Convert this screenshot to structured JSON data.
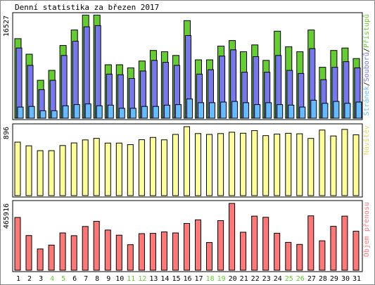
{
  "title": "Denní statistika za březen 2017",
  "colors": {
    "hits": "#66cc33",
    "files": "#7777ee",
    "pages": "#66bbff",
    "visits": "#ffff99",
    "kbytes": "#ff7777",
    "label_hits": "#66cc33",
    "label_files": "#7777ee",
    "label_pages": "#66bbff",
    "label_visits": "#dddd66",
    "label_kbytes": "#ff7777",
    "weekend_day": "#66cc33"
  },
  "chart_data": [
    {
      "type": "bar",
      "categories": [
        "1",
        "2",
        "3",
        "4",
        "5",
        "6",
        "7",
        "8",
        "9",
        "10",
        "11",
        "12",
        "13",
        "14",
        "15",
        "16",
        "17",
        "18",
        "19",
        "20",
        "21",
        "22",
        "23",
        "24",
        "25",
        "26",
        "27",
        "28",
        "29",
        "30",
        "31"
      ],
      "weekend_days": [
        "4",
        "5",
        "11",
        "12",
        "18",
        "19",
        "25",
        "26"
      ],
      "ylabel_max": "16527",
      "ylim": [
        0,
        16527
      ],
      "series": [
        {
          "name": "Přístupů",
          "values": [
            12800,
            10300,
            6100,
            7700,
            11700,
            14200,
            16600,
            16600,
            8600,
            8600,
            8100,
            9200,
            10900,
            10700,
            10100,
            15700,
            9400,
            9400,
            11600,
            12500,
            10700,
            11800,
            9300,
            14000,
            11500,
            10700,
            14200,
            8200,
            10900,
            11300,
            9600
          ]
        },
        {
          "name": "Souborů",
          "values": [
            11300,
            8500,
            4600,
            6100,
            10100,
            12400,
            14700,
            14900,
            7100,
            7000,
            6400,
            7600,
            9300,
            9000,
            8500,
            13300,
            7100,
            7800,
            10000,
            11000,
            7400,
            9900,
            7400,
            10100,
            7700,
            7200,
            11200,
            6200,
            8200,
            9100,
            8100
          ]
        },
        {
          "name": "Stránek",
          "values": [
            1800,
            1900,
            1200,
            1200,
            2000,
            2200,
            2300,
            2000,
            2100,
            1600,
            1600,
            1900,
            1900,
            2100,
            2200,
            3100,
            2500,
            2500,
            2600,
            2700,
            2500,
            2200,
            2500,
            2200,
            2100,
            1800,
            2900,
            2400,
            2700,
            2400,
            2600
          ]
        }
      ]
    },
    {
      "type": "bar",
      "categories": [
        "1",
        "2",
        "3",
        "4",
        "5",
        "6",
        "7",
        "8",
        "9",
        "10",
        "11",
        "12",
        "13",
        "14",
        "15",
        "16",
        "17",
        "18",
        "19",
        "20",
        "21",
        "22",
        "23",
        "24",
        "25",
        "26",
        "27",
        "28",
        "29",
        "30",
        "31"
      ],
      "ylabel_max": "896",
      "ylim": [
        0,
        896
      ],
      "series": [
        {
          "name": "Návštěv",
          "values": [
            695,
            647,
            584,
            584,
            651,
            685,
            724,
            744,
            683,
            683,
            663,
            727,
            756,
            725,
            795,
            896,
            806,
            795,
            806,
            824,
            811,
            845,
            780,
            800,
            810,
            804,
            743,
            852,
            775,
            860,
            790
          ]
        }
      ]
    },
    {
      "type": "bar",
      "categories": [
        "1",
        "2",
        "3",
        "4",
        "5",
        "6",
        "7",
        "8",
        "9",
        "10",
        "11",
        "12",
        "13",
        "14",
        "15",
        "16",
        "17",
        "18",
        "19",
        "20",
        "21",
        "22",
        "23",
        "24",
        "25",
        "26",
        "27",
        "28",
        "29",
        "30",
        "31"
      ],
      "ylabel_max": "465916",
      "ylim": [
        0,
        465916
      ],
      "series": [
        {
          "name": "Objem přenosu",
          "values": [
            368000,
            242000,
            148000,
            175000,
            260000,
            241000,
            305000,
            341000,
            280000,
            244000,
            178000,
            255000,
            257000,
            267000,
            260000,
            326000,
            351000,
            193000,
            346000,
            465916,
            265000,
            377000,
            369000,
            258000,
            194000,
            180000,
            379000,
            205000,
            306000,
            377000,
            272000
          ]
        }
      ]
    }
  ]
}
